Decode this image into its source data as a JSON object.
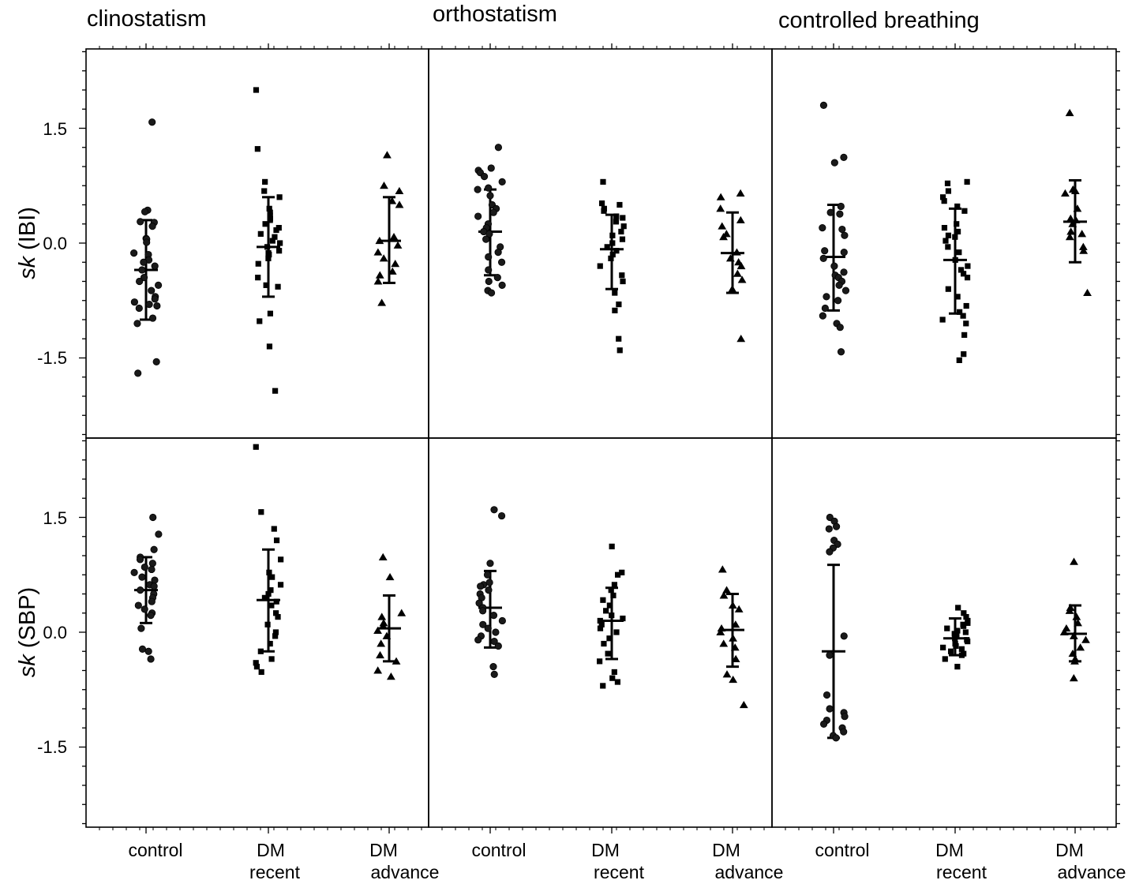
{
  "figure": {
    "columns": [
      "clinostatism",
      "orthostatism",
      "controlled breathing"
    ],
    "rows": [
      {
        "ylabel_italic": "sk",
        "ylabel_rest": " (IBI)"
      },
      {
        "ylabel_italic": "sk",
        "ylabel_rest": " (SBP)"
      }
    ],
    "groups": [
      {
        "lines": [
          "control"
        ],
        "marker": "circle"
      },
      {
        "lines": [
          "DM",
          "recent"
        ],
        "marker": "square"
      },
      {
        "lines": [
          "DM",
          "advance"
        ],
        "marker": "triangle"
      }
    ],
    "y_ticks": [
      1.5,
      0.0,
      -1.5
    ],
    "y_tick_labels": [
      "1.5",
      "0.0",
      "-1.5"
    ],
    "ylim": [
      -2.55,
      2.55
    ],
    "colors": {
      "ink": "#000000",
      "marker_fill": "#1a1a1a",
      "background": "#ffffff"
    }
  },
  "chart_data": [
    {
      "type": "scatter",
      "title": "clinostatism",
      "ylabel": "sk (IBI)",
      "ylim": [
        -2.55,
        2.55
      ],
      "series": [
        {
          "name": "control",
          "mean": -0.35,
          "err_low": -1.0,
          "err_high": 0.3,
          "values": [
            1.58,
            0.43,
            0.41,
            0.28,
            0.27,
            0.22,
            0.06,
            0.05,
            0.01,
            -0.13,
            -0.15,
            -0.22,
            -0.25,
            -0.3,
            -0.35,
            -0.45,
            -0.5,
            -0.55,
            -0.62,
            -0.7,
            -0.73,
            -0.77,
            -0.8,
            -0.82,
            -0.85,
            -0.98,
            -1.05,
            -1.55,
            -1.7
          ]
        },
        {
          "name": "DM recent",
          "mean": -0.05,
          "err_low": -0.7,
          "err_high": 0.6,
          "values": [
            1.23,
            0.8,
            0.68,
            0.6,
            0.45,
            0.4,
            0.36,
            0.32,
            0.3,
            0.25,
            0.2,
            0.17,
            0.12,
            0.08,
            0.03,
            0.0,
            -0.05,
            -0.1,
            -0.13,
            -0.15,
            -0.2,
            -0.27,
            -0.45,
            -0.55,
            -0.57,
            -0.92,
            -1.02,
            -1.35,
            -1.93,
            2.0
          ]
        },
        {
          "name": "DM advance",
          "mean": 0.03,
          "err_low": -0.52,
          "err_high": 0.6,
          "values": [
            1.15,
            0.75,
            0.68,
            0.55,
            0.5,
            0.08,
            0.03,
            -0.03,
            -0.12,
            -0.2,
            -0.27,
            -0.37,
            -0.42,
            -0.5,
            -0.78
          ]
        }
      ]
    },
    {
      "type": "scatter",
      "title": "orthostatism",
      "ylabel": "sk (IBI)",
      "ylim": [
        -2.55,
        2.55
      ],
      "series": [
        {
          "name": "control",
          "mean": 0.15,
          "err_low": -0.42,
          "err_high": 0.7,
          "values": [
            1.25,
            0.98,
            0.95,
            0.92,
            0.87,
            0.8,
            0.72,
            0.7,
            0.62,
            0.5,
            0.45,
            0.4,
            0.35,
            0.25,
            0.2,
            0.15,
            0.12,
            0.05,
            -0.05,
            -0.12,
            -0.18,
            -0.25,
            -0.35,
            -0.45,
            -0.5,
            -0.55,
            -0.62,
            -0.65
          ]
        },
        {
          "name": "DM recent",
          "mean": -0.08,
          "err_low": -0.6,
          "err_high": 0.37,
          "values": [
            0.8,
            0.52,
            0.5,
            0.45,
            0.42,
            0.35,
            0.33,
            0.28,
            0.22,
            0.15,
            0.1,
            0.05,
            0.0,
            -0.05,
            -0.1,
            -0.15,
            -0.2,
            -0.3,
            -0.42,
            -0.5,
            -0.65,
            -0.8,
            -0.88,
            -1.25,
            -1.4
          ]
        },
        {
          "name": "DM advance",
          "mean": -0.13,
          "err_low": -0.65,
          "err_high": 0.4,
          "values": [
            0.65,
            0.6,
            0.45,
            0.3,
            0.22,
            0.12,
            0.08,
            -0.12,
            -0.2,
            -0.25,
            -0.3,
            -0.4,
            -0.48,
            -0.6,
            -1.25
          ]
        }
      ]
    },
    {
      "type": "scatter",
      "title": "controlled breathing",
      "ylabel": "sk (IBI)",
      "ylim": [
        -2.55,
        2.55
      ],
      "series": [
        {
          "name": "control",
          "mean": -0.18,
          "err_low": -0.88,
          "err_high": 0.5,
          "values": [
            1.8,
            1.12,
            1.05,
            0.48,
            0.4,
            0.38,
            0.2,
            0.18,
            0.1,
            -0.1,
            -0.12,
            -0.2,
            -0.3,
            -0.38,
            -0.42,
            -0.45,
            -0.5,
            -0.55,
            -0.62,
            -0.7,
            -0.75,
            -0.85,
            -0.95,
            -1.05,
            -1.1,
            -1.42
          ]
        },
        {
          "name": "DM recent",
          "mean": -0.22,
          "err_low": -0.92,
          "err_high": 0.45,
          "values": [
            0.8,
            0.78,
            0.68,
            0.6,
            0.55,
            0.48,
            0.42,
            0.25,
            0.2,
            0.15,
            0.1,
            0.08,
            0.03,
            -0.05,
            -0.12,
            -0.22,
            -0.3,
            -0.35,
            -0.4,
            -0.45,
            -0.6,
            -0.7,
            -0.82,
            -0.9,
            -0.95,
            -1.0,
            -1.05,
            -1.2,
            -1.45,
            -1.53
          ]
        },
        {
          "name": "DM advance",
          "mean": 0.28,
          "err_low": -0.25,
          "err_high": 0.82,
          "values": [
            1.7,
            0.7,
            0.68,
            0.65,
            0.45,
            0.32,
            0.3,
            0.25,
            0.15,
            0.12,
            0.08,
            -0.05,
            -0.1,
            -0.65
          ]
        }
      ]
    },
    {
      "type": "scatter",
      "title": "clinostatism",
      "ylabel": "sk (SBP)",
      "ylim": [
        -2.55,
        2.55
      ],
      "series": [
        {
          "name": "control",
          "mean": 0.55,
          "err_low": 0.12,
          "err_high": 0.98,
          "values": [
            1.5,
            1.28,
            1.08,
            0.98,
            0.95,
            0.9,
            0.85,
            0.82,
            0.78,
            0.72,
            0.68,
            0.62,
            0.6,
            0.55,
            0.5,
            0.45,
            0.4,
            0.35,
            0.3,
            0.25,
            0.22,
            0.05,
            -0.22,
            -0.25,
            -0.35
          ]
        },
        {
          "name": "DM recent",
          "mean": 0.42,
          "err_low": -0.25,
          "err_high": 1.08,
          "values": [
            2.42,
            1.57,
            1.35,
            1.2,
            0.95,
            0.78,
            0.72,
            0.62,
            0.55,
            0.5,
            0.45,
            0.4,
            0.35,
            0.25,
            0.2,
            0.1,
            0.0,
            -0.05,
            -0.15,
            -0.25,
            -0.35,
            -0.4,
            -0.45,
            -0.52
          ]
        },
        {
          "name": "DM advance",
          "mean": 0.05,
          "err_low": -0.38,
          "err_high": 0.48,
          "values": [
            0.98,
            0.72,
            0.25,
            0.2,
            0.12,
            0.08,
            0.02,
            -0.05,
            -0.15,
            -0.3,
            -0.38,
            -0.5,
            -0.58
          ]
        }
      ]
    },
    {
      "type": "scatter",
      "title": "orthostatism",
      "ylabel": "sk (SBP)",
      "ylim": [
        -2.55,
        2.55
      ],
      "series": [
        {
          "name": "control",
          "mean": 0.32,
          "err_low": -0.2,
          "err_high": 0.8,
          "values": [
            1.6,
            1.52,
            0.9,
            0.75,
            0.65,
            0.62,
            0.6,
            0.55,
            0.5,
            0.45,
            0.38,
            0.32,
            0.28,
            0.22,
            0.15,
            0.1,
            0.05,
            0.0,
            -0.05,
            -0.1,
            -0.12,
            -0.18,
            -0.45,
            -0.55
          ]
        },
        {
          "name": "DM recent",
          "mean": 0.15,
          "err_low": -0.35,
          "err_high": 0.58,
          "values": [
            1.12,
            0.78,
            0.75,
            0.62,
            0.55,
            0.48,
            0.42,
            0.35,
            0.28,
            0.22,
            0.18,
            0.15,
            0.1,
            0.05,
            0.0,
            -0.08,
            -0.15,
            -0.28,
            -0.38,
            -0.52,
            -0.6,
            -0.65,
            -0.7
          ]
        },
        {
          "name": "DM advance",
          "mean": 0.03,
          "err_low": -0.45,
          "err_high": 0.5,
          "values": [
            0.82,
            0.55,
            0.48,
            0.35,
            0.3,
            0.1,
            0.05,
            0.0,
            -0.08,
            -0.15,
            -0.2,
            -0.35,
            -0.55,
            -0.62,
            -0.95
          ]
        }
      ]
    },
    {
      "type": "scatter",
      "title": "controlled breathing",
      "ylabel": "sk (SBP)",
      "ylim": [
        -2.55,
        2.55
      ],
      "series": [
        {
          "name": "control",
          "mean": -0.25,
          "err_low": -1.38,
          "err_high": 0.88,
          "values": [
            1.5,
            1.45,
            1.38,
            1.35,
            1.2,
            1.15,
            1.1,
            1.05,
            -0.05,
            -0.3,
            -0.82,
            -1.0,
            -1.05,
            -1.1,
            -1.15,
            -1.2,
            -1.25,
            -1.3,
            -1.35,
            -1.38
          ]
        },
        {
          "name": "DM recent",
          "mean": -0.08,
          "err_low": -0.3,
          "err_high": 0.18,
          "values": [
            0.32,
            0.25,
            0.2,
            0.15,
            0.12,
            0.1,
            0.08,
            0.05,
            0.02,
            0.0,
            -0.02,
            -0.05,
            -0.08,
            -0.1,
            -0.12,
            -0.15,
            -0.18,
            -0.2,
            -0.22,
            -0.25,
            -0.28,
            -0.3,
            -0.35,
            -0.45
          ]
        },
        {
          "name": "DM advance",
          "mean": -0.02,
          "err_low": -0.38,
          "err_high": 0.35,
          "values": [
            0.92,
            0.32,
            0.28,
            0.2,
            0.12,
            0.05,
            0.0,
            -0.05,
            -0.1,
            -0.2,
            -0.28,
            -0.35,
            -0.38,
            -0.6
          ]
        }
      ]
    }
  ]
}
